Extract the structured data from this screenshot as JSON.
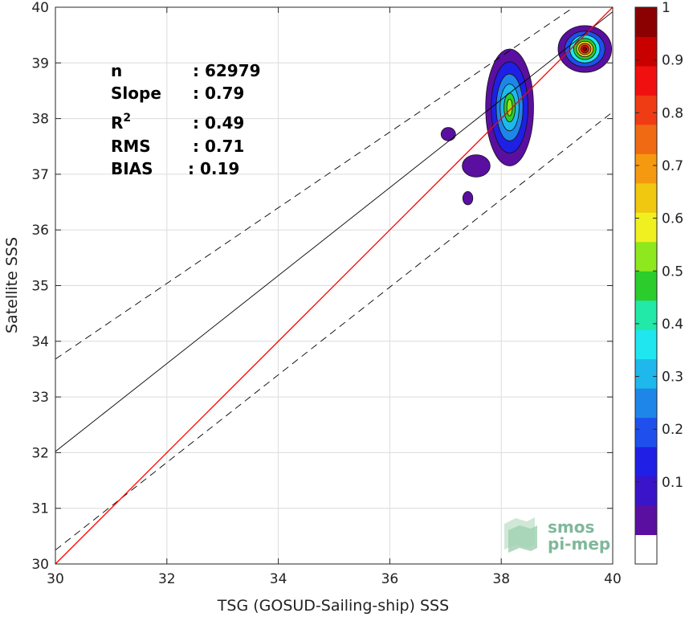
{
  "chart_data": {
    "type": "heatmap",
    "xlabel": "TSG (GOSUD-Sailing-ship) SSS",
    "ylabel": "Satellite SSS",
    "xlim": [
      30,
      40
    ],
    "ylim": [
      30,
      40
    ],
    "xticks": [
      "30",
      "32",
      "34",
      "36",
      "38",
      "40"
    ],
    "yticks": [
      "30",
      "31",
      "32",
      "33",
      "34",
      "35",
      "36",
      "37",
      "38",
      "39",
      "40"
    ],
    "grid": true,
    "statistics": {
      "n": {
        "label": "n",
        "value": ": 62979"
      },
      "slope": {
        "label": "Slope",
        "value": ": 0.79"
      },
      "r2": {
        "label": "R",
        "sup": "2",
        "value": ": 0.49"
      },
      "rms": {
        "label": "RMS",
        "value": ": 0.71"
      },
      "bias": {
        "label": "BIAS",
        "value": ": 0.19"
      }
    },
    "lines": {
      "identity": {
        "x": [
          30,
          40
        ],
        "y": [
          30,
          40
        ],
        "color": "#ff0000"
      },
      "regression": {
        "x": [
          30,
          40
        ],
        "y": [
          32.02,
          39.92
        ],
        "color": "#000000"
      },
      "upper_bound": {
        "x": [
          30,
          39.3
        ],
        "y": [
          33.68,
          40.0
        ],
        "color": "#000000",
        "style": "dashed"
      },
      "lower_bound": {
        "x": [
          30,
          40
        ],
        "y": [
          30.25,
          38.12
        ],
        "color": "#000000",
        "style": "dashed"
      }
    },
    "density_clusters": [
      {
        "name": "cluster-center",
        "x": 38.15,
        "y": 38.2,
        "levels": [
          {
            "level": 0.05,
            "rx": 0.43,
            "ry": 1.05
          },
          {
            "level": 0.15,
            "rx": 0.33,
            "ry": 0.82
          },
          {
            "level": 0.25,
            "rx": 0.24,
            "ry": 0.6
          },
          {
            "level": 0.3,
            "rx": 0.17,
            "ry": 0.42
          },
          {
            "level": 0.45,
            "rx": 0.1,
            "ry": 0.26
          },
          {
            "level": 0.55,
            "rx": 0.05,
            "ry": 0.15
          }
        ]
      },
      {
        "name": "cluster-right",
        "x": 39.5,
        "y": 39.25,
        "levels": [
          {
            "level": 0.05,
            "rx": 0.48,
            "ry": 0.42
          },
          {
            "level": 0.2,
            "rx": 0.36,
            "ry": 0.32
          },
          {
            "level": 0.35,
            "rx": 0.27,
            "ry": 0.25
          },
          {
            "level": 0.5,
            "rx": 0.2,
            "ry": 0.19
          },
          {
            "level": 0.65,
            "rx": 0.15,
            "ry": 0.14
          },
          {
            "level": 0.75,
            "rx": 0.11,
            "ry": 0.1
          },
          {
            "level": 0.85,
            "rx": 0.07,
            "ry": 0.07
          },
          {
            "level": 0.95,
            "rx": 0.035,
            "ry": 0.035
          }
        ]
      },
      {
        "name": "cluster-small-a",
        "x": 37.05,
        "y": 37.72,
        "levels": [
          {
            "level": 0.05,
            "rx": 0.13,
            "ry": 0.12
          }
        ]
      },
      {
        "name": "cluster-small-b",
        "x": 37.55,
        "y": 37.15,
        "levels": [
          {
            "level": 0.05,
            "rx": 0.25,
            "ry": 0.2
          }
        ]
      },
      {
        "name": "cluster-small-c",
        "x": 37.4,
        "y": 36.57,
        "levels": [
          {
            "level": 0.05,
            "rx": 0.09,
            "ry": 0.12
          }
        ]
      }
    ],
    "colorbar": {
      "range": [
        0,
        1
      ],
      "tick_labels": [
        "0.1",
        "0.2",
        "0.3",
        "0.4",
        "0.5",
        "0.6",
        "0.7",
        "0.8",
        "0.9",
        "1"
      ],
      "tick_values": [
        0.1,
        0.2,
        0.3,
        0.4,
        0.5,
        0.6,
        0.7,
        0.8,
        0.9,
        1.0
      ],
      "colors": [
        "#ffffff",
        "#5a0fa0",
        "#3a14c8",
        "#1f1fe6",
        "#1f50ee",
        "#1e86e8",
        "#1fb8ec",
        "#20e6f0",
        "#22e8a8",
        "#2ccc2c",
        "#8ee81e",
        "#f0f020",
        "#f0c810",
        "#f59a10",
        "#f06a14",
        "#f03c14",
        "#f01010",
        "#c80000",
        "#8b0000"
      ]
    }
  },
  "logo": {
    "line1": "smos",
    "line2": "pi-mep",
    "color": "#7fb89a"
  }
}
